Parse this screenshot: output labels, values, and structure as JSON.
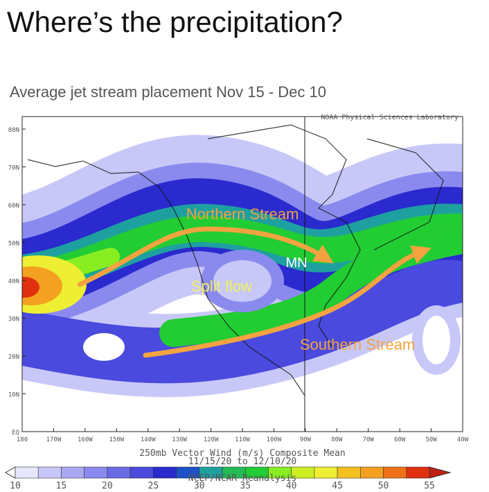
{
  "header": {
    "title": "Where’s the precipitation?",
    "subtitle": "Average jet stream placement Nov 15 - Dec 10"
  },
  "map": {
    "credit": "NOAA Physical Sciences Laboratory",
    "lat_labels": [
      "80N",
      "70N",
      "60N",
      "50N",
      "40N",
      "30N",
      "20N",
      "10N",
      "EQ"
    ],
    "lon_labels": [
      "180",
      "170W",
      "160W",
      "150W",
      "140W",
      "130W",
      "120W",
      "110W",
      "100W",
      "90W",
      "80W",
      "70W",
      "60W",
      "50W",
      "40W"
    ],
    "annotations": {
      "northern": "Northern Stream",
      "mn": "MN",
      "split": "Split flow",
      "southern": "Southern Stream"
    },
    "caption": [
      "250mb Vector Wind (m/s) Composite Mean",
      "11/15/20  to  12/10/20",
      "NCEP/NCAR Reanalysis"
    ],
    "colorbar_labels": [
      "10",
      "15",
      "20",
      "25",
      "30",
      "35",
      "40",
      "45",
      "50",
      "55"
    ]
  }
}
